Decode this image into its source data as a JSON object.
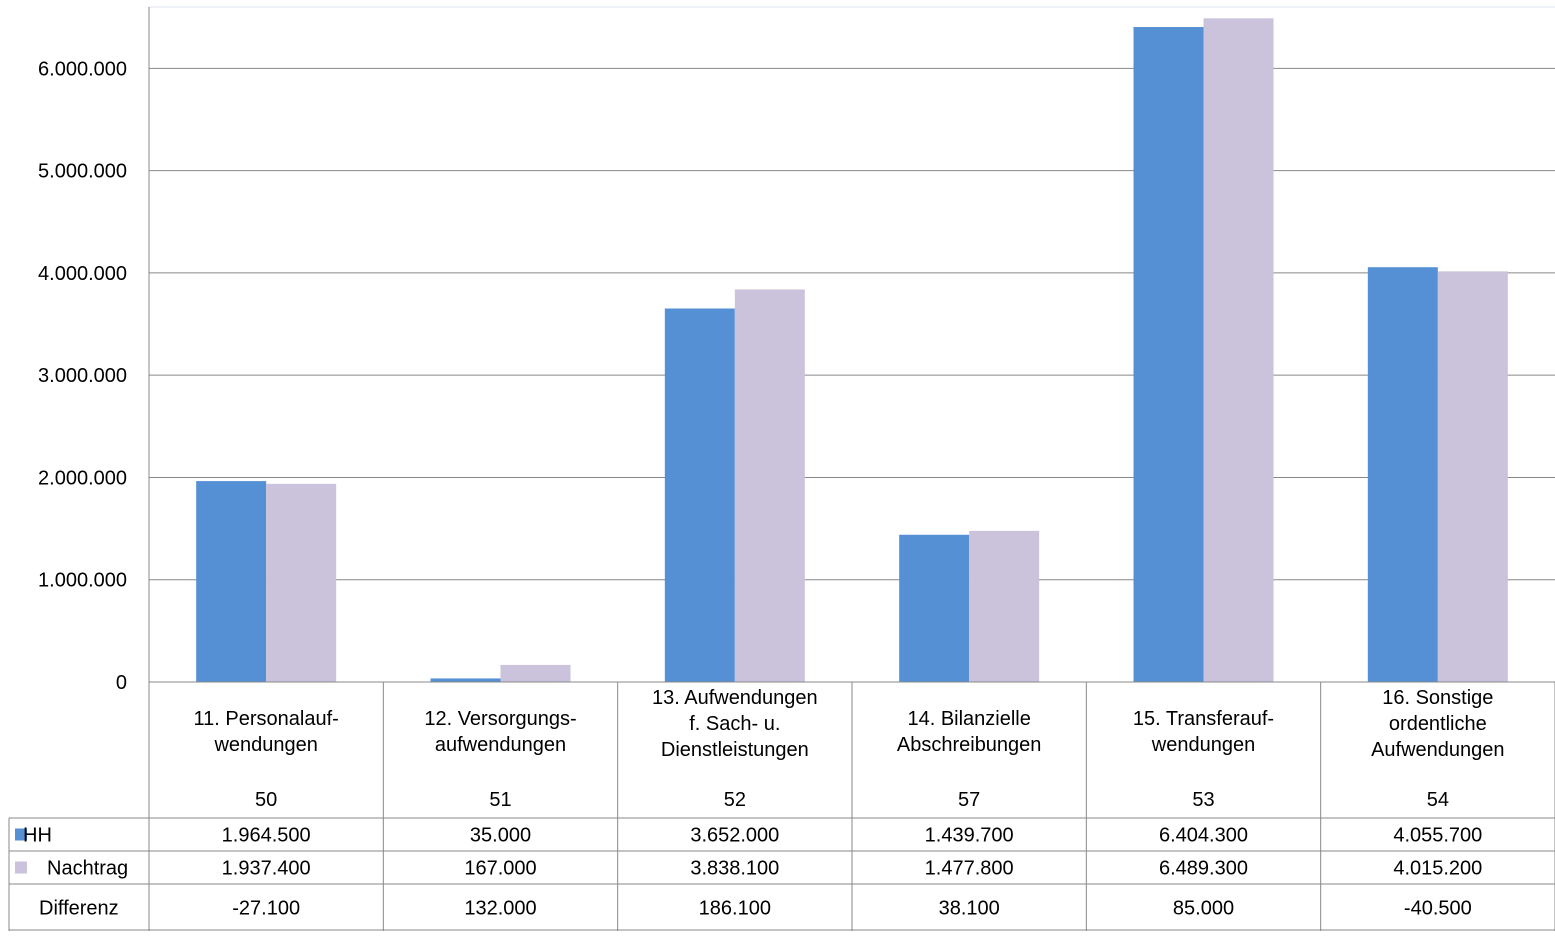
{
  "chart_data": {
    "type": "bar",
    "title": "",
    "xlabel": "",
    "ylabel": "",
    "ylim": [
      0,
      6600000
    ],
    "yticks": [
      0,
      1000000,
      2000000,
      3000000,
      4000000,
      5000000,
      6000000
    ],
    "ytick_labels": [
      "0",
      "1.000.000",
      "2.000.000",
      "3.000.000",
      "4.000.000",
      "5.000.000",
      "6.000.000"
    ],
    "grid": true,
    "legend": "data-table-left",
    "categories": [
      [
        "11. Personalauf-",
        "wendungen"
      ],
      [
        "12. Versorgungs-",
        "aufwendungen"
      ],
      [
        "13. Aufwendungen",
        "f. Sach- u.",
        "Dienstleistungen"
      ],
      [
        "14. Bilanzielle",
        "Abschreibungen"
      ],
      [
        "15. Transferauf-",
        "wendungen"
      ],
      [
        "16. Sonstige",
        "ordentliche",
        "Aufwendungen"
      ]
    ],
    "codes": [
      "50",
      "51",
      "52",
      "57",
      "53",
      "54"
    ],
    "series": [
      {
        "name": "HH",
        "color": "#5590d5",
        "values": [
          1964500,
          35000,
          3652000,
          1439700,
          6404300,
          4055700
        ],
        "labels": [
          "1.964.500",
          "35.000",
          "3.652.000",
          "1.439.700",
          "6.404.300",
          "4.055.700"
        ]
      },
      {
        "name": "Nachtrag",
        "color": "#cbc2dc",
        "values": [
          1937400,
          167000,
          3838100,
          1477800,
          6489300,
          4015200
        ],
        "labels": [
          "1.937.400",
          "167.000",
          "3.838.100",
          "1.477.800",
          "6.489.300",
          "4.015.200"
        ]
      }
    ],
    "difference_row": {
      "name": "Differenz",
      "values": [
        -27100,
        132000,
        186100,
        38100,
        85000,
        -40500
      ],
      "labels": [
        "-27.100",
        "132.000",
        "186.100",
        "38.100",
        "85.000",
        "-40.500"
      ]
    }
  }
}
